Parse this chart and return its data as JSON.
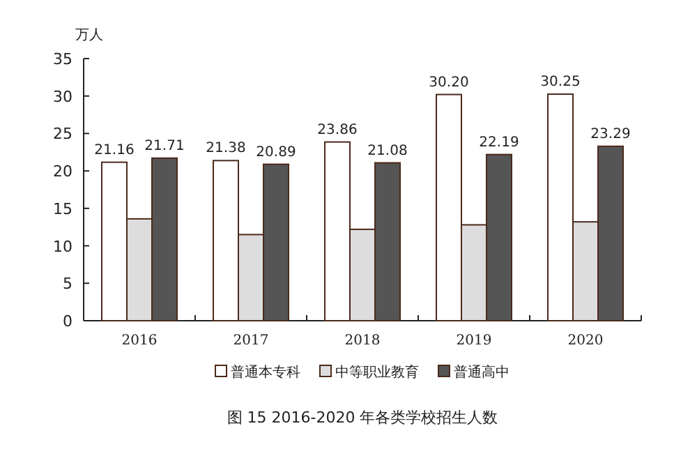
{
  "chart_data": {
    "type": "bar",
    "ylabel": "万人",
    "categories": [
      "2016",
      "2017",
      "2018",
      "2019",
      "2020"
    ],
    "ylim": [
      0,
      35
    ],
    "yticks": [
      0,
      5,
      10,
      15,
      20,
      25,
      30,
      35
    ],
    "legend": "bottom",
    "grid": false,
    "series": [
      {
        "name": "普通本专科",
        "color": "#ffffff",
        "values": [
          21.16,
          21.38,
          23.86,
          30.2,
          30.25
        ],
        "value_labels": [
          "21.16",
          "21.38",
          "23.86",
          "30.20",
          "30.25"
        ]
      },
      {
        "name": "中等职业教育",
        "color": "#dddddd",
        "values": [
          13.6,
          11.5,
          12.2,
          12.8,
          13.2
        ]
      },
      {
        "name": "普通高中",
        "color": "#555555",
        "values": [
          21.71,
          20.89,
          21.08,
          22.19,
          23.29
        ],
        "value_labels": [
          "21.71",
          "20.89",
          "21.08",
          "22.19",
          "23.29"
        ]
      }
    ],
    "annotations": [
      "图 15   2016-2020 年各类学校招生人数"
    ]
  }
}
